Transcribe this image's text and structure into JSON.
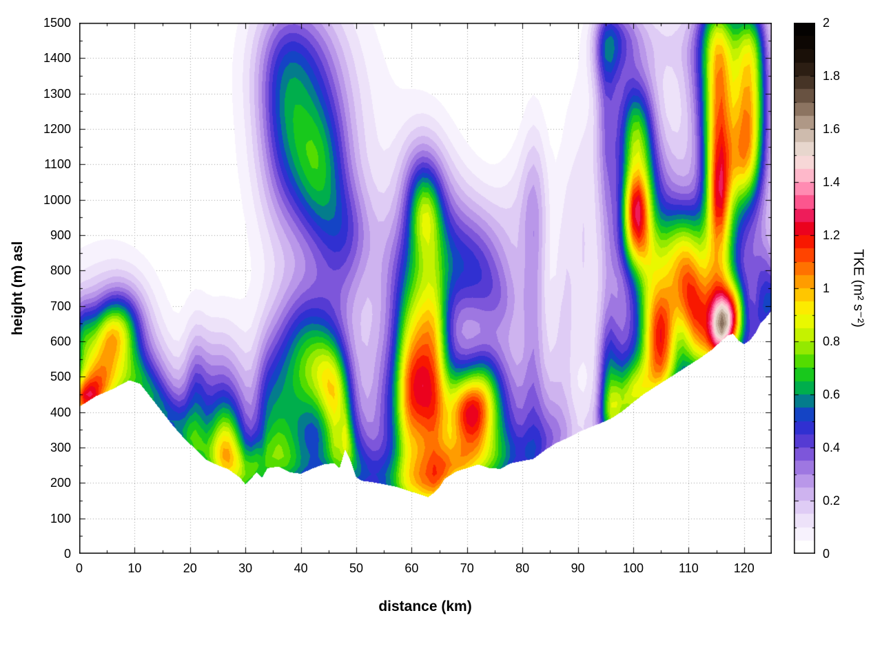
{
  "chart_data": {
    "type": "heatmap",
    "title": "",
    "xlabel": "distance (km)",
    "ylabel": "height (m) asl",
    "colorbar_label": "TKE (m² s⁻²)",
    "xlim": [
      0,
      125
    ],
    "ylim": [
      0,
      1500
    ],
    "clim": [
      0,
      2
    ],
    "grid": true,
    "contour_interval": 0.05,
    "background_color": "#ffffff",
    "grid_color": "#9a9a9a",
    "axis_color": "#000000",
    "x_ticks": {
      "values": [
        0,
        10,
        20,
        30,
        40,
        50,
        60,
        70,
        80,
        90,
        100,
        110,
        120
      ],
      "labels": [
        "0",
        "10",
        "20",
        "30",
        "40",
        "50",
        "60",
        "70",
        "80",
        "90",
        "100",
        "110",
        "120"
      ],
      "minor_step": 5
    },
    "y_ticks": {
      "values": [
        0,
        100,
        200,
        300,
        400,
        500,
        600,
        700,
        800,
        900,
        1000,
        1100,
        1200,
        1300,
        1400,
        1500
      ],
      "labels": [
        "0",
        "100",
        "200",
        "300",
        "400",
        "500",
        "600",
        "700",
        "800",
        "900",
        "1000",
        "1100",
        "1200",
        "1300",
        "1400",
        "1500"
      ],
      "minor_step": 50
    },
    "colorbar_ticks": {
      "values": [
        0,
        0.2,
        0.4,
        0.6,
        0.8,
        1,
        1.2,
        1.4,
        1.6,
        1.8,
        2
      ],
      "labels": [
        "0",
        "0.2",
        "0.4",
        "0.6",
        "0.8",
        "1",
        "1.2",
        "1.4",
        "1.6",
        "1.8",
        "2"
      ],
      "minor_step": 0.1
    },
    "palette": [
      [
        0.0,
        "#ffffff"
      ],
      [
        0.05,
        "#fbf8fe"
      ],
      [
        0.1,
        "#f3ebfb"
      ],
      [
        0.15,
        "#e7d8f7"
      ],
      [
        0.2,
        "#d7c0f2"
      ],
      [
        0.25,
        "#c4a6ec"
      ],
      [
        0.3,
        "#ad88e5"
      ],
      [
        0.35,
        "#9066dd"
      ],
      [
        0.4,
        "#6a46d6"
      ],
      [
        0.45,
        "#4030d0"
      ],
      [
        0.5,
        "#2030d2"
      ],
      [
        0.55,
        "#0858b8"
      ],
      [
        0.6,
        "#00a060"
      ],
      [
        0.65,
        "#00bc38"
      ],
      [
        0.7,
        "#30d400"
      ],
      [
        0.75,
        "#78e400"
      ],
      [
        0.8,
        "#b0ee00"
      ],
      [
        0.85,
        "#daf600"
      ],
      [
        0.9,
        "#f8fa00"
      ],
      [
        0.95,
        "#ffdc00"
      ],
      [
        1.0,
        "#ffb000"
      ],
      [
        1.05,
        "#ff8800"
      ],
      [
        1.1,
        "#ff5c00"
      ],
      [
        1.15,
        "#ff2c00"
      ],
      [
        1.2,
        "#f20400"
      ],
      [
        1.25,
        "#e4003c"
      ],
      [
        1.3,
        "#f83878"
      ],
      [
        1.35,
        "#ff74a4"
      ],
      [
        1.4,
        "#ffa2c0"
      ],
      [
        1.45,
        "#fccdd4"
      ],
      [
        1.5,
        "#f2e0da"
      ],
      [
        1.55,
        "#dcccc0"
      ],
      [
        1.6,
        "#c0aa9a"
      ],
      [
        1.65,
        "#9e8672"
      ],
      [
        1.7,
        "#7a6250"
      ],
      [
        1.75,
        "#564232"
      ],
      [
        1.8,
        "#36261a"
      ],
      [
        1.85,
        "#22160c"
      ],
      [
        1.9,
        "#120a04"
      ],
      [
        1.95,
        "#080402"
      ],
      [
        2.0,
        "#000000"
      ]
    ],
    "terrain_profile_m": [
      [
        0,
        415
      ],
      [
        3,
        445
      ],
      [
        6,
        465
      ],
      [
        9,
        490
      ],
      [
        11,
        480
      ],
      [
        13,
        440
      ],
      [
        15,
        400
      ],
      [
        17,
        360
      ],
      [
        19,
        325
      ],
      [
        21,
        295
      ],
      [
        23,
        265
      ],
      [
        25,
        250
      ],
      [
        27,
        238
      ],
      [
        29,
        215
      ],
      [
        30,
        196
      ],
      [
        31,
        212
      ],
      [
        32,
        230
      ],
      [
        33,
        215
      ],
      [
        34,
        242
      ],
      [
        36,
        246
      ],
      [
        38,
        230
      ],
      [
        40,
        226
      ],
      [
        42,
        240
      ],
      [
        44,
        252
      ],
      [
        46,
        256
      ],
      [
        47,
        242
      ],
      [
        48,
        295
      ],
      [
        49,
        262
      ],
      [
        50,
        216
      ],
      [
        51,
        206
      ],
      [
        53,
        202
      ],
      [
        55,
        196
      ],
      [
        57,
        190
      ],
      [
        59,
        180
      ],
      [
        61,
        170
      ],
      [
        63,
        160
      ],
      [
        64,
        172
      ],
      [
        65,
        188
      ],
      [
        66,
        212
      ],
      [
        68,
        232
      ],
      [
        70,
        242
      ],
      [
        72,
        252
      ],
      [
        74,
        242
      ],
      [
        76,
        240
      ],
      [
        78,
        256
      ],
      [
        80,
        262
      ],
      [
        82,
        268
      ],
      [
        84,
        292
      ],
      [
        86,
        312
      ],
      [
        88,
        326
      ],
      [
        90,
        342
      ],
      [
        92,
        356
      ],
      [
        94,
        368
      ],
      [
        96,
        382
      ],
      [
        98,
        402
      ],
      [
        100,
        428
      ],
      [
        102,
        452
      ],
      [
        104,
        472
      ],
      [
        106,
        492
      ],
      [
        108,
        512
      ],
      [
        110,
        532
      ],
      [
        112,
        552
      ],
      [
        114,
        574
      ],
      [
        116,
        602
      ],
      [
        117,
        616
      ],
      [
        118,
        622
      ],
      [
        119,
        602
      ],
      [
        120,
        592
      ],
      [
        121,
        602
      ],
      [
        122,
        622
      ],
      [
        123,
        652
      ],
      [
        124,
        668
      ],
      [
        125,
        688
      ]
    ],
    "surface_layer": {
      "height_scale_m": 85,
      "amps": [
        [
          0,
          0.28
        ],
        [
          4,
          0.3
        ],
        [
          8,
          0.28
        ],
        [
          12,
          0.22
        ],
        [
          16,
          0.22
        ],
        [
          20,
          0.28
        ],
        [
          24,
          0.25
        ],
        [
          28,
          0.25
        ],
        [
          31,
          0.28
        ],
        [
          34,
          0.28
        ],
        [
          38,
          0.3
        ],
        [
          42,
          0.3
        ],
        [
          46,
          0.3
        ],
        [
          49,
          0.25
        ],
        [
          52,
          0.28
        ],
        [
          55,
          0.3
        ],
        [
          58,
          0.32
        ],
        [
          61,
          0.3
        ],
        [
          64,
          0.32
        ],
        [
          67,
          0.3
        ],
        [
          70,
          0.28
        ],
        [
          74,
          0.25
        ],
        [
          78,
          0.22
        ],
        [
          81,
          0.22
        ],
        [
          84,
          0.15
        ],
        [
          87,
          0.1
        ],
        [
          90,
          0.08
        ],
        [
          93,
          0.12
        ],
        [
          96,
          0.22
        ],
        [
          99,
          0.25
        ],
        [
          102,
          0.25
        ],
        [
          105,
          0.22
        ],
        [
          108,
          0.18
        ],
        [
          111,
          0.2
        ],
        [
          114,
          0.22
        ],
        [
          116,
          0.25
        ],
        [
          118,
          0.22
        ],
        [
          120,
          0.22
        ],
        [
          122,
          0.25
        ],
        [
          125,
          0.28
        ]
      ]
    },
    "tke_features": [
      [
        2,
        480,
        2.5,
        60,
        0.35
      ],
      [
        4.5,
        560,
        2.5,
        80,
        0.35
      ],
      [
        6.5,
        620,
        2.5,
        60,
        0.3
      ],
      [
        5,
        550,
        5,
        150,
        0.2
      ],
      [
        8,
        660,
        3,
        80,
        0.25
      ],
      [
        1,
        435,
        2,
        35,
        0.45
      ],
      [
        0.5,
        615,
        1.5,
        70,
        0.3
      ],
      [
        4,
        560,
        8,
        200,
        0.12
      ],
      [
        13,
        420,
        4,
        100,
        0.18
      ],
      [
        12,
        520,
        3,
        80,
        0.12
      ],
      [
        18,
        350,
        4,
        100,
        0.18
      ],
      [
        21,
        430,
        1.5,
        150,
        0.25
      ],
      [
        26.5,
        300,
        2,
        80,
        0.35
      ],
      [
        26.5,
        300,
        3,
        130,
        0.3
      ],
      [
        30.5,
        240,
        2,
        60,
        0.22
      ],
      [
        28,
        360,
        5,
        180,
        0.15
      ],
      [
        25,
        500,
        3,
        120,
        0.15
      ],
      [
        33.5,
        400,
        1.5,
        150,
        0.22
      ],
      [
        36,
        420,
        2,
        150,
        0.28
      ],
      [
        40,
        480,
        2.5,
        120,
        0.3
      ],
      [
        44.5,
        510,
        2.5,
        90,
        0.35
      ],
      [
        43,
        480,
        5,
        180,
        0.2
      ],
      [
        46,
        420,
        2,
        100,
        0.35
      ],
      [
        41,
        630,
        4,
        120,
        0.22
      ],
      [
        38,
        300,
        3,
        80,
        0.25
      ],
      [
        47.5,
        350,
        2,
        120,
        0.28
      ],
      [
        50,
        280,
        2.5,
        80,
        0.22
      ],
      [
        47,
        780,
        3,
        120,
        0.14
      ],
      [
        50,
        880,
        3,
        100,
        0.1
      ],
      [
        43,
        1100,
        3.5,
        120,
        0.3
      ],
      [
        42,
        1150,
        6,
        250,
        0.2
      ],
      [
        40,
        1300,
        5,
        150,
        0.18
      ],
      [
        38,
        1420,
        5,
        120,
        0.14
      ],
      [
        46,
        950,
        4,
        100,
        0.18
      ],
      [
        36.5,
        1200,
        3,
        200,
        0.18
      ],
      [
        43,
        1200,
        9,
        300,
        0.09
      ],
      [
        53,
        450,
        3,
        200,
        0.1
      ],
      [
        56,
        350,
        2,
        150,
        0.16
      ],
      [
        57,
        800,
        2.5,
        120,
        0.1
      ],
      [
        61.5,
        480,
        2.2,
        90,
        0.4
      ],
      [
        61.5,
        520,
        3.5,
        220,
        0.4
      ],
      [
        62.5,
        640,
        2.5,
        80,
        0.2
      ],
      [
        62,
        300,
        2.5,
        100,
        0.3
      ],
      [
        62.5,
        210,
        2.5,
        60,
        0.25
      ],
      [
        62,
        850,
        2.2,
        150,
        0.22
      ],
      [
        62.5,
        960,
        1.8,
        70,
        0.2
      ],
      [
        61,
        600,
        5,
        350,
        0.2
      ],
      [
        59,
        400,
        1.5,
        200,
        0.25
      ],
      [
        64.5,
        500,
        1.5,
        250,
        0.25
      ],
      [
        61.5,
        1050,
        2.5,
        100,
        0.15
      ],
      [
        63,
        1000,
        3,
        120,
        0.1
      ],
      [
        70.5,
        400,
        2.5,
        70,
        0.5
      ],
      [
        70.5,
        400,
        4.5,
        120,
        0.45
      ],
      [
        72,
        350,
        6,
        150,
        0.18
      ],
      [
        75,
        300,
        3,
        80,
        0.18
      ],
      [
        68,
        245,
        3,
        60,
        0.3
      ],
      [
        73.5,
        480,
        2,
        80,
        0.22
      ],
      [
        68,
        820,
        4,
        100,
        0.18
      ],
      [
        72,
        760,
        4,
        90,
        0.16
      ],
      [
        70,
        900,
        5,
        120,
        0.11
      ],
      [
        76,
        700,
        3,
        80,
        0.13
      ],
      [
        66,
        950,
        4,
        150,
        0.1
      ],
      [
        74,
        850,
        3,
        120,
        0.1
      ],
      [
        78,
        500,
        2.5,
        150,
        0.12
      ],
      [
        79,
        950,
        2.5,
        150,
        0.09
      ],
      [
        82,
        600,
        1.5,
        350,
        0.22
      ],
      [
        82.5,
        1000,
        2,
        150,
        0.12
      ],
      [
        86,
        500,
        2,
        200,
        0.1
      ],
      [
        88,
        700,
        1.5,
        300,
        0.1
      ],
      [
        84,
        350,
        3,
        100,
        0.15
      ],
      [
        90,
        1000,
        2,
        300,
        0.07
      ],
      [
        91.5,
        800,
        1.2,
        300,
        0.09
      ],
      [
        95.5,
        500,
        1.5,
        120,
        0.32
      ],
      [
        95.5,
        800,
        1.5,
        350,
        0.18
      ],
      [
        95,
        1250,
        1.5,
        200,
        0.22
      ],
      [
        95.5,
        1430,
        2,
        80,
        0.3
      ],
      [
        96.5,
        400,
        1.5,
        80,
        0.28
      ],
      [
        100.5,
        975,
        1.6,
        70,
        0.55
      ],
      [
        100.5,
        1000,
        2.2,
        180,
        0.42
      ],
      [
        100.5,
        1180,
        2,
        100,
        0.3
      ],
      [
        100.5,
        870,
        2,
        60,
        0.25
      ],
      [
        100,
        1100,
        3,
        250,
        0.13
      ],
      [
        100,
        460,
        2,
        80,
        0.42
      ],
      [
        99,
        600,
        2,
        150,
        0.18
      ],
      [
        102.5,
        700,
        1.5,
        200,
        0.18
      ],
      [
        99,
        1350,
        2,
        150,
        0.12
      ],
      [
        103,
        1250,
        2,
        120,
        0.1
      ],
      [
        105,
        620,
        1.8,
        90,
        0.5
      ],
      [
        105,
        620,
        3,
        150,
        0.42
      ],
      [
        104.5,
        500,
        2,
        80,
        0.2
      ],
      [
        105.5,
        820,
        2.5,
        100,
        0.28
      ],
      [
        105,
        900,
        3,
        150,
        0.14
      ],
      [
        104,
        1050,
        2,
        100,
        0.12
      ],
      [
        108,
        1100,
        2.5,
        150,
        0.1
      ],
      [
        110,
        750,
        2,
        100,
        0.5
      ],
      [
        110,
        750,
        3.5,
        160,
        0.32
      ],
      [
        109.5,
        900,
        2.5,
        80,
        0.22
      ],
      [
        111.5,
        650,
        1.5,
        80,
        0.28
      ],
      [
        112,
        1300,
        2,
        150,
        0.12
      ],
      [
        115.5,
        1150,
        1.8,
        180,
        0.6
      ],
      [
        115.5,
        1100,
        2.8,
        350,
        0.42
      ],
      [
        115.5,
        1400,
        2,
        100,
        0.3
      ],
      [
        115,
        800,
        2,
        120,
        0.32
      ],
      [
        115.5,
        1000,
        1.2,
        80,
        0.25
      ],
      [
        114.5,
        1490,
        2.5,
        80,
        0.2
      ],
      [
        116,
        650,
        1.5,
        60,
        0.5
      ],
      [
        116,
        650,
        2.5,
        100,
        0.42
      ],
      [
        114,
        600,
        3,
        100,
        0.18
      ],
      [
        118.5,
        690,
        1.5,
        60,
        0.35
      ],
      [
        120.5,
        1250,
        1.8,
        140,
        0.45
      ],
      [
        120.5,
        1250,
        3,
        250,
        0.32
      ],
      [
        121,
        1450,
        2,
        80,
        0.28
      ],
      [
        120,
        1100,
        2,
        80,
        0.26
      ],
      [
        122.5,
        1300,
        2,
        150,
        0.22
      ],
      [
        124,
        760,
        2,
        80,
        0.26
      ],
      [
        123,
        900,
        2.5,
        200,
        0.13
      ],
      [
        105,
        1450,
        4,
        80,
        0.1
      ],
      [
        110,
        1400,
        3,
        100,
        0.09
      ],
      [
        98,
        1470,
        3,
        60,
        0.13
      ],
      [
        119,
        900,
        2,
        150,
        0.1
      ]
    ]
  }
}
